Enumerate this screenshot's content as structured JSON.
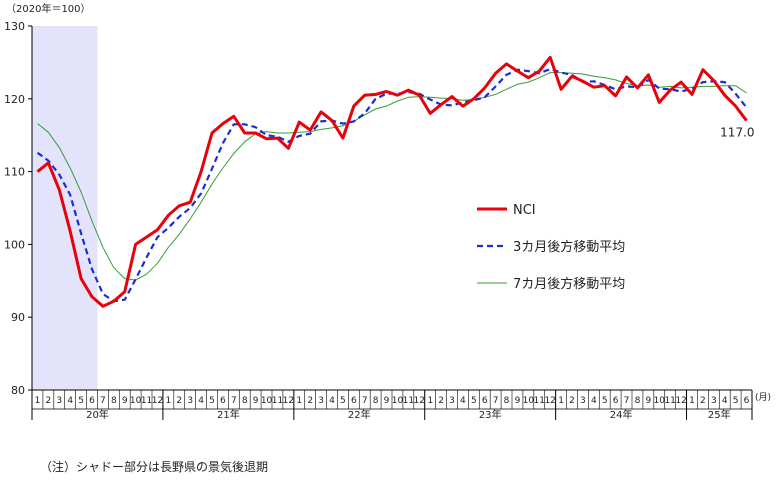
{
  "chart_data": {
    "type": "line",
    "unit_label": "（2020年＝100）",
    "month_suffix": "(月)",
    "year_labels": [
      "20年",
      "21年",
      "22年",
      "23年",
      "24年",
      "25年"
    ],
    "yticks": [
      80,
      90,
      100,
      110,
      120,
      130
    ],
    "ylim": [
      80,
      130
    ],
    "grid": false,
    "legend_position": "right",
    "shading": {
      "label": "シャドー部分は長野県の景気後退期",
      "from": "2020-01",
      "to": "2020-06"
    },
    "x": [
      "2020-01",
      "2020-02",
      "2020-03",
      "2020-04",
      "2020-05",
      "2020-06",
      "2020-07",
      "2020-08",
      "2020-09",
      "2020-10",
      "2020-11",
      "2020-12",
      "2021-01",
      "2021-02",
      "2021-03",
      "2021-04",
      "2021-05",
      "2021-06",
      "2021-07",
      "2021-08",
      "2021-09",
      "2021-10",
      "2021-11",
      "2021-12",
      "2022-01",
      "2022-02",
      "2022-03",
      "2022-04",
      "2022-05",
      "2022-06",
      "2022-07",
      "2022-08",
      "2022-09",
      "2022-10",
      "2022-11",
      "2022-12",
      "2023-01",
      "2023-02",
      "2023-03",
      "2023-04",
      "2023-05",
      "2023-06",
      "2023-07",
      "2023-08",
      "2023-09",
      "2023-10",
      "2023-11",
      "2023-12",
      "2024-01",
      "2024-02",
      "2024-03",
      "2024-04",
      "2024-05",
      "2024-06",
      "2024-07",
      "2024-08",
      "2024-09",
      "2024-10",
      "2024-11",
      "2024-12",
      "2025-01",
      "2025-02",
      "2025-03",
      "2025-04",
      "2025-05",
      "2025-06"
    ],
    "series": [
      {
        "name": "NCI",
        "color": "#e8000b",
        "style": "solid",
        "values": [
          110.0,
          111.2,
          107.5,
          101.8,
          95.3,
          92.8,
          91.5,
          92.2,
          93.5,
          100.0,
          101.0,
          102.0,
          104.0,
          105.3,
          105.8,
          110.0,
          115.3,
          116.6,
          117.6,
          115.3,
          115.3,
          114.5,
          114.6,
          113.2,
          116.8,
          115.7,
          118.2,
          117.0,
          114.6,
          119.0,
          120.5,
          120.6,
          121.0,
          120.5,
          121.2,
          120.5,
          118.0,
          119.2,
          120.3,
          119.0,
          120.0,
          121.5,
          123.5,
          124.8,
          123.8,
          122.9,
          123.8,
          125.7,
          121.3,
          123.1,
          122.4,
          121.6,
          121.8,
          120.4,
          123.0,
          121.5,
          123.3,
          119.5,
          121.2,
          122.3,
          120.6,
          124.0,
          122.5,
          120.5,
          119.0,
          117.0
        ]
      },
      {
        "name": "3カ月後方移動平均",
        "color": "#1a2dd6",
        "style": "dashed",
        "values": [
          112.6,
          111.5,
          109.6,
          106.8,
          101.5,
          96.6,
          93.2,
          92.2,
          92.4,
          95.2,
          98.2,
          101.0,
          102.3,
          103.8,
          105.0,
          107.0,
          110.4,
          113.9,
          116.5,
          116.5,
          116.1,
          115.0,
          114.8,
          114.1,
          114.9,
          115.2,
          116.9,
          117.0,
          116.6,
          116.9,
          118.0,
          120.0,
          120.7,
          120.7,
          120.9,
          120.7,
          119.9,
          119.2,
          119.1,
          119.5,
          119.8,
          120.2,
          121.7,
          123.3,
          124.0,
          123.8,
          123.5,
          124.1,
          123.6,
          123.3,
          122.3,
          122.4,
          121.9,
          121.3,
          121.7,
          121.6,
          122.6,
          121.4,
          121.3,
          121.0,
          121.4,
          122.3,
          122.4,
          122.3,
          120.7,
          118.8
        ]
      },
      {
        "name": "7カ月後方移動平均",
        "color": "#3a9a3a",
        "style": "thin",
        "values": [
          116.6,
          115.4,
          113.3,
          110.5,
          107.2,
          103.2,
          99.6,
          96.8,
          95.3,
          95.1,
          95.9,
          97.4,
          99.6,
          101.4,
          103.5,
          105.8,
          108.3,
          110.5,
          112.5,
          114.1,
          115.2,
          115.5,
          115.3,
          115.3,
          115.4,
          115.5,
          115.8,
          116.0,
          116.3,
          116.9,
          117.8,
          118.6,
          119.0,
          119.7,
          120.2,
          120.3,
          120.2,
          120.1,
          120.0,
          119.8,
          119.9,
          120.2,
          120.6,
          121.3,
          122.0,
          122.3,
          122.9,
          123.6,
          123.6,
          123.5,
          123.4,
          123.1,
          122.9,
          122.6,
          122.1,
          121.8,
          121.9,
          121.6,
          121.7,
          121.5,
          121.6,
          121.7,
          121.7,
          121.8,
          121.8,
          120.8
        ]
      }
    ],
    "annotations": [
      {
        "text": "117.0",
        "x": "2025-06",
        "y": 117.0
      }
    ]
  },
  "note": "（注）シャドー部分は長野県の景気後退期"
}
